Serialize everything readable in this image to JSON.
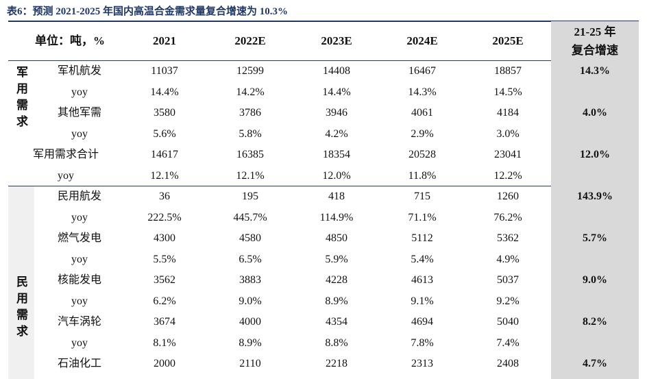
{
  "caption": "表6：预测 2021-2025 年国内高温合金需求量复合增速为 10.3%",
  "header": {
    "unit": "单位：吨，%",
    "years": [
      "2021",
      "2022E",
      "2023E",
      "2024E",
      "2025E"
    ],
    "cagr_line1": "21-25 年",
    "cagr_line2": "复合增速"
  },
  "groups": {
    "military": "军用需求",
    "civil": "民用需求"
  },
  "rows": [
    {
      "label": "军机航发",
      "values": [
        "11037",
        "12599",
        "14408",
        "16467",
        "18857"
      ],
      "cagr": "14.3%"
    },
    {
      "label": "yoy",
      "values": [
        "14.4%",
        "14.2%",
        "14.4%",
        "14.3%",
        "14.5%"
      ],
      "cagr": ""
    },
    {
      "label": "其他军需",
      "values": [
        "3580",
        "3786",
        "3946",
        "4061",
        "4184"
      ],
      "cagr": "4.0%"
    },
    {
      "label": "yoy",
      "values": [
        "5.6%",
        "5.8%",
        "4.2%",
        "2.9%",
        "3.0%"
      ],
      "cagr": ""
    },
    {
      "label": "军用需求合计",
      "values": [
        "14617",
        "16385",
        "18354",
        "20528",
        "23041"
      ],
      "cagr": "12.0%"
    },
    {
      "label": "yoy",
      "values": [
        "12.1%",
        "12.1%",
        "12.0%",
        "11.8%",
        "12.2%"
      ],
      "cagr": ""
    },
    {
      "label": "民用航发",
      "values": [
        "36",
        "195",
        "418",
        "715",
        "1260"
      ],
      "cagr": "143.9%"
    },
    {
      "label": "yoy",
      "values": [
        "222.5%",
        "445.7%",
        "114.9%",
        "71.1%",
        "76.2%"
      ],
      "cagr": ""
    },
    {
      "label": "燃气发电",
      "values": [
        "4300",
        "4580",
        "4850",
        "5112",
        "5362"
      ],
      "cagr": "5.7%"
    },
    {
      "label": "yoy",
      "values": [
        "5.5%",
        "6.5%",
        "5.9%",
        "5.4%",
        "4.9%"
      ],
      "cagr": ""
    },
    {
      "label": "核能发电",
      "values": [
        "3562",
        "3883",
        "4228",
        "4613",
        "5037"
      ],
      "cagr": "9.0%"
    },
    {
      "label": "yoy",
      "values": [
        "6.2%",
        "9.0%",
        "8.9%",
        "9.1%",
        "9.2%"
      ],
      "cagr": ""
    },
    {
      "label": "汽车涡轮",
      "values": [
        "3674",
        "4000",
        "4354",
        "4694",
        "5040"
      ],
      "cagr": "8.2%"
    },
    {
      "label": "yoy",
      "values": [
        "8.1%",
        "8.9%",
        "8.8%",
        "7.8%",
        "7.4%"
      ],
      "cagr": ""
    },
    {
      "label": "石油化工",
      "values": [
        "2000",
        "2110",
        "2218",
        "2313",
        "2408"
      ],
      "cagr": "4.7%"
    }
  ]
}
